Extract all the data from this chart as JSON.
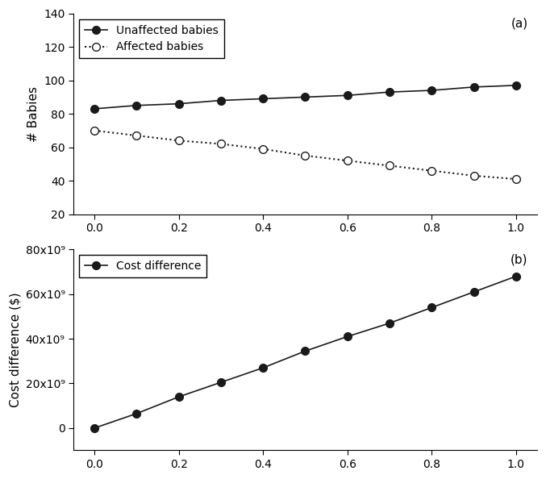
{
  "x": [
    0.0,
    0.1,
    0.2,
    0.3,
    0.4,
    0.5,
    0.6,
    0.7,
    0.8,
    0.9,
    1.0
  ],
  "unaffected": [
    83,
    85,
    86,
    88,
    89,
    90,
    91,
    93,
    94,
    96,
    97
  ],
  "affected": [
    70,
    67,
    64,
    62,
    59,
    55,
    52,
    49,
    46,
    43,
    41
  ],
  "cost_diff": [
    0.0,
    6500000000.0,
    14000000000.0,
    20500000000.0,
    27000000000.0,
    34500000000.0,
    41000000000.0,
    47000000000.0,
    54000000000.0,
    61000000000.0,
    68000000000.0
  ],
  "panel_a_ylabel": "# Babies",
  "panel_b_ylabel": "Cost difference ($)",
  "panel_a_ylim": [
    20,
    140
  ],
  "panel_a_yticks": [
    20,
    40,
    60,
    80,
    100,
    120,
    140
  ],
  "panel_a_yticklabels": [
    "20",
    "40",
    "60",
    "80",
    "100",
    "120",
    "140"
  ],
  "panel_b_ylim": [
    -10000000000.0,
    80000000000.0
  ],
  "panel_b_yticks": [
    0,
    20000000000.0,
    40000000000.0,
    60000000000.0,
    80000000000.0
  ],
  "panel_b_yticklabels": [
    "0",
    "20x10⁹",
    "40x10⁹",
    "60x10⁹",
    "80x10⁹"
  ],
  "xlim": [
    -0.05,
    1.05
  ],
  "xticks": [
    0.0,
    0.2,
    0.4,
    0.6,
    0.8,
    1.0
  ],
  "xticklabels": [
    "0.0",
    "0.2",
    "0.4",
    "0.6",
    "0.8",
    "1.0"
  ],
  "legend_a_labels": [
    "Unaffected babies",
    "Affected babies"
  ],
  "legend_b_labels": [
    "Cost difference"
  ],
  "panel_a_label": "(a)",
  "panel_b_label": "(b)",
  "line_color": "#1a1a1a",
  "marker_color_filled": "#1a1a1a",
  "marker_color_open": "#ffffff",
  "background_color": "#ffffff",
  "fontsize_ticks": 10,
  "fontsize_label": 11,
  "fontsize_panel": 11,
  "fontsize_legend": 10
}
